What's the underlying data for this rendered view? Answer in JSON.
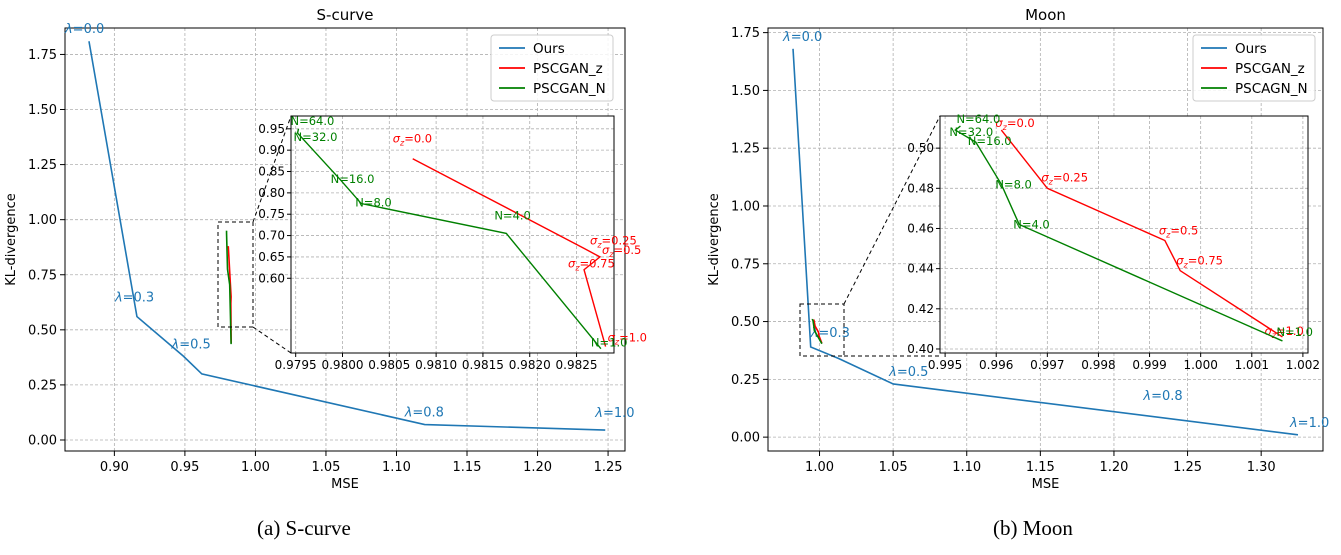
{
  "captions": [
    "(a) S-curve",
    "(b) Moon"
  ],
  "colors": {
    "Ours": "#1f77b4",
    "PSCGAN_z": "#ff0000",
    "PSCGAN_N": "#008000"
  },
  "chart_data": [
    {
      "type": "line",
      "title": "S-curve",
      "xlabel": "MSE",
      "ylabel": "KL-divergence",
      "xlim": [
        0.865,
        1.262
      ],
      "ylim": [
        -0.05,
        1.87
      ],
      "xticks": [
        "0.90",
        "0.95",
        "1.00",
        "1.05",
        "1.10",
        "1.15",
        "1.20",
        "1.25"
      ],
      "yticks": [
        "0.00",
        "0.25",
        "0.50",
        "0.75",
        "1.00",
        "1.25",
        "1.50",
        "1.75"
      ],
      "legend": {
        "placement": "top-right",
        "entries": [
          "Ours",
          "PSCGAN_z",
          "PSCGAN_N"
        ]
      },
      "grid": true,
      "series": [
        {
          "name": "Ours",
          "x": [
            0.882,
            0.916,
            0.949,
            0.962,
            1.12,
            1.248
          ],
          "y": [
            1.81,
            0.56,
            0.38,
            0.3,
            0.07,
            0.045
          ],
          "labels": [
            "λ=0.0",
            "λ=0.3",
            "λ=0.5",
            "",
            "λ=0.8",
            "λ=1.0"
          ]
        },
        {
          "name": "PSCGAN_z",
          "x": [
            0.98075,
            0.98258,
            0.98275,
            0.98258,
            0.98281
          ],
          "y": [
            0.88,
            0.67,
            0.65,
            0.62,
            0.44
          ],
          "labels": [
            "σz=0.0",
            "σz=0.25",
            "σz=0.5",
            "σz=0.75",
            "σz=1.0"
          ]
        },
        {
          "name": "PSCGAN_N",
          "x": [
            0.97953,
            0.97952,
            0.97998,
            0.9802,
            0.98175,
            0.98276
          ],
          "y": [
            0.95,
            0.94,
            0.83,
            0.775,
            0.705,
            0.435
          ],
          "labels": [
            "N=64.0",
            "N=32.0",
            "N=16.0",
            "N=8.0",
            "N=4.0",
            "N=1.0"
          ]
        }
      ],
      "inset": {
        "xlim": [
          0.97945,
          0.9829
        ],
        "ylim": [
          0.425,
          0.98
        ],
        "xticks": [
          "0.9795",
          "0.9800",
          "0.9805",
          "0.9810",
          "0.9815",
          "0.9820",
          "0.9825"
        ],
        "yticks": [
          "0.60",
          "0.65",
          "0.70",
          "0.75",
          "0.80",
          "0.85",
          "0.90",
          "0.95"
        ]
      }
    },
    {
      "type": "line",
      "title": "Moon",
      "xlabel": "MSE",
      "ylabel": "KL-divergence",
      "xlim": [
        0.965,
        1.342
      ],
      "ylim": [
        -0.06,
        1.77
      ],
      "xticks": [
        "1.00",
        "1.05",
        "1.10",
        "1.15",
        "1.20",
        "1.25",
        "1.30"
      ],
      "yticks": [
        "0.00",
        "0.25",
        "0.50",
        "0.75",
        "1.00",
        "1.25",
        "1.50",
        "1.75"
      ],
      "legend": {
        "placement": "top-right",
        "entries": [
          "Ours",
          "PSCGAN_z",
          "PSCAGN_N"
        ]
      },
      "grid": true,
      "series": [
        {
          "name": "Ours",
          "x": [
            0.982,
            0.994,
            1.013,
            1.05,
            1.325
          ],
          "y": [
            1.68,
            0.39,
            0.34,
            0.23,
            0.01
          ],
          "labels": [
            "λ=0.0",
            "λ=0.3",
            "",
            "λ=0.5",
            "λ=1.0"
          ],
          "extra_labels": [
            {
              "text": "λ=0.8",
              "x": 1.22,
              "y": 0.16
            }
          ]
        },
        {
          "name": "PSCGAN_z",
          "x": [
            0.9961,
            0.997,
            0.9993,
            0.9996,
            1.0016
          ],
          "y": [
            0.509,
            0.48,
            0.454,
            0.439,
            0.406
          ],
          "labels": [
            "σz=0.0",
            "σz=0.25",
            "σz=0.5",
            "σz=0.75",
            "σz=1.0"
          ]
        },
        {
          "name": "PSCGAN_N",
          "x": [
            0.9953,
            0.9952,
            0.9956,
            0.9961,
            0.99645,
            1.0016
          ],
          "y": [
            0.511,
            0.509,
            0.503,
            0.482,
            0.462,
            0.404
          ],
          "labels": [
            "N=64.0",
            "N=32.0",
            "N=16.0",
            "N=8.0",
            "N=4.0",
            "N=1.0"
          ]
        }
      ],
      "inset": {
        "xlim": [
          0.9949,
          1.0021
        ],
        "ylim": [
          0.398,
          0.516
        ],
        "xticks": [
          "0.995",
          "0.996",
          "0.997",
          "0.998",
          "0.999",
          "1.000",
          "1.001",
          "1.002"
        ],
        "yticks": [
          "0.40",
          "0.42",
          "0.44",
          "0.46",
          "0.48",
          "0.50"
        ]
      }
    }
  ]
}
